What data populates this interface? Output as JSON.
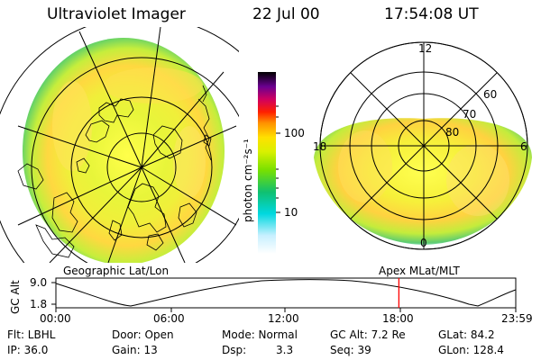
{
  "header": {
    "title": "Ultraviolet Imager",
    "date": "22 Jul 00",
    "time": "17:54:08 UT"
  },
  "colorbar": {
    "label": "photon cm⁻²s⁻¹",
    "ticks": [
      "100",
      "10"
    ],
    "scale": "log",
    "colors": [
      "#000000",
      "#3a0066",
      "#8b0094",
      "#d40048",
      "#ff0000",
      "#ff7a00",
      "#ffb000",
      "#ffe400",
      "#c8f000",
      "#6ee000",
      "#00c800",
      "#00c8a0",
      "#00e0ff",
      "#c8f4ff",
      "#ffffff"
    ]
  },
  "polar_plot": {
    "top_label": "12",
    "left_label": "18",
    "right_label": "6",
    "bottom_label": "0",
    "ring_labels": [
      "60",
      "70",
      "80"
    ]
  },
  "labels": {
    "geo": "Geographic Lat/Lon",
    "apex": "Apex MLat/MLT"
  },
  "altitude_plot": {
    "ylabel": "GC Alt",
    "yticks": [
      "9.0",
      "1.8"
    ],
    "xticks": [
      "00:00",
      "06:00",
      "12:00",
      "18:00",
      "23:59"
    ],
    "current_time_hours": 17.9
  },
  "footer": {
    "flt": "Flt: LBHL",
    "door": "Door: Open",
    "mode": "Mode: Normal",
    "gcalt": "GC Alt: 7.2 Re",
    "glat": "GLat:  84.2",
    "ip": "IP: 36.0",
    "gain": "Gain: 13",
    "dsp": "Dsp:",
    "dsp_val": "3.3",
    "seq": "Seq: 39",
    "glon": "GLon: 128.4"
  }
}
